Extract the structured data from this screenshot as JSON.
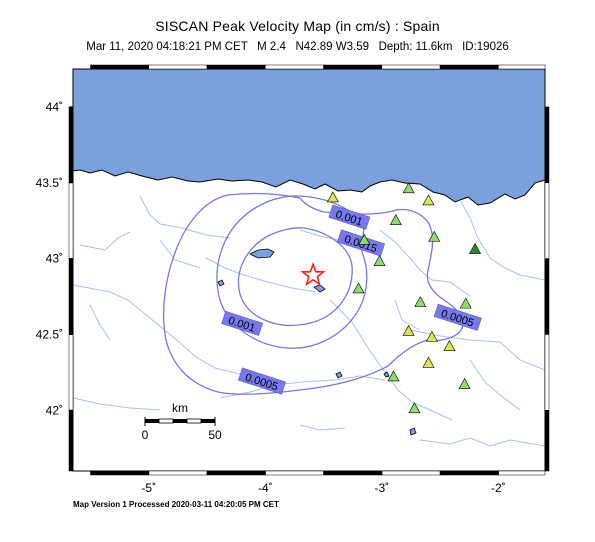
{
  "title": "SISCAN Peak Velocity Map (in cm/s) : Spain",
  "subtitle": "Mar 11, 2020 04:18:21 PM CET   M 2.4   N42.89 W3.59   Depth: 11.6km   ID:19026",
  "footer": "Map Version 1 Processed 2020-03-11 04:20:05 PM CET",
  "map": {
    "lon_range": [
      -5.65,
      -1.6
    ],
    "lat_range": [
      41.6,
      44.25
    ],
    "lat_ticks": [
      {
        "value": 44,
        "label": "44˚"
      },
      {
        "value": 43.5,
        "label": "43.5˚"
      },
      {
        "value": 43,
        "label": "43˚"
      },
      {
        "value": 42.5,
        "label": "42.5˚"
      },
      {
        "value": 42,
        "label": "42˚"
      }
    ],
    "lon_ticks": [
      {
        "value": -5,
        "label": "-5˚"
      },
      {
        "value": -4,
        "label": "-4˚"
      },
      {
        "value": -3,
        "label": "-3˚"
      },
      {
        "value": -2,
        "label": "-2˚"
      }
    ],
    "sea_color": "#7ba1dc",
    "land_color": "#ffffff",
    "river_color": "#a8c4e8",
    "contour_color": "#7777e0",
    "contour_label_bg": "#7777ee",
    "epicenter": {
      "lat": 42.89,
      "lon": -3.59,
      "color": "#ff2020"
    },
    "contour_labels": [
      {
        "text": "0.001",
        "lon": -3.28,
        "lat": 43.27
      },
      {
        "text": "0.0015",
        "lon": -3.18,
        "lat": 43.1
      },
      {
        "text": "0.001",
        "lon": -4.2,
        "lat": 42.57
      },
      {
        "text": "0.0005",
        "lon": -4.03,
        "lat": 42.19
      },
      {
        "text": "0.0005",
        "lon": -2.35,
        "lat": 42.61
      }
    ],
    "stations": [
      {
        "lon": -3.15,
        "lat": 43.12,
        "color": "#8fdc6a"
      },
      {
        "lon": -3.42,
        "lat": 43.4,
        "color": "#d9e84a"
      },
      {
        "lon": -2.77,
        "lat": 43.46,
        "color": "#8fdc6a"
      },
      {
        "lon": -2.6,
        "lat": 43.38,
        "color": "#d9e84a"
      },
      {
        "lon": -2.88,
        "lat": 43.25,
        "color": "#8fdc6a"
      },
      {
        "lon": -2.55,
        "lat": 43.14,
        "color": "#8fdc6a"
      },
      {
        "lon": -2.2,
        "lat": 43.06,
        "color": "#2a8a2a"
      },
      {
        "lon": -3.02,
        "lat": 42.98,
        "color": "#8fdc6a"
      },
      {
        "lon": -3.2,
        "lat": 42.8,
        "color": "#8fdc6a"
      },
      {
        "lon": -2.67,
        "lat": 42.71,
        "color": "#8fdc6a"
      },
      {
        "lon": -2.28,
        "lat": 42.7,
        "color": "#8fdc6a"
      },
      {
        "lon": -2.77,
        "lat": 42.52,
        "color": "#d9e84a"
      },
      {
        "lon": -2.57,
        "lat": 42.48,
        "color": "#d9e84a"
      },
      {
        "lon": -2.42,
        "lat": 42.42,
        "color": "#d9e84a"
      },
      {
        "lon": -2.6,
        "lat": 42.31,
        "color": "#d9e84a"
      },
      {
        "lon": -2.9,
        "lat": 42.22,
        "color": "#8fdc6a"
      },
      {
        "lon": -2.29,
        "lat": 42.17,
        "color": "#8fdc6a"
      },
      {
        "lon": -2.72,
        "lat": 42.01,
        "color": "#8fdc6a"
      }
    ],
    "scale_bar": {
      "unit": "km",
      "ticks": [
        "0",
        "50"
      ]
    }
  }
}
